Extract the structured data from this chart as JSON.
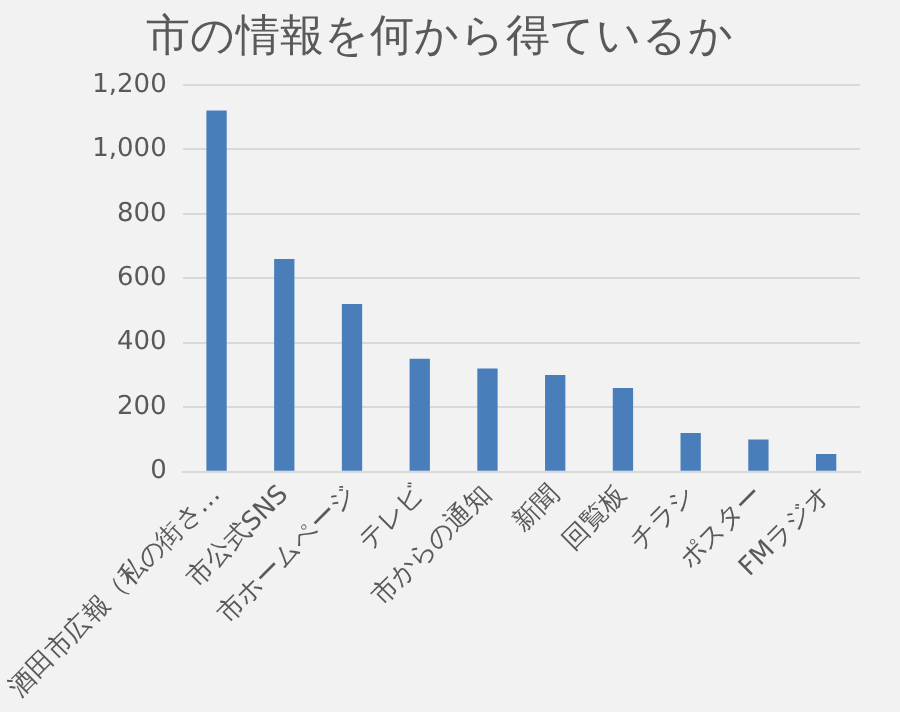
{
  "chart_data": {
    "type": "bar",
    "title": "市の情報を何から得ているか",
    "categories": [
      "酒田市広報（私の街さ…",
      "市公式SNS",
      "市ホームページ",
      "テレビ",
      "市からの通知",
      "新聞",
      "回覧板",
      "チラシ",
      "ポスター",
      "FMラジオ"
    ],
    "values": [
      1120,
      660,
      520,
      350,
      320,
      300,
      260,
      120,
      100,
      55
    ],
    "color": "#4a7ebb",
    "ylim": [
      0,
      1200
    ],
    "yticks": [
      0,
      200,
      400,
      600,
      800,
      {
        "value": 1000,
        "label": "1,000"
      },
      {
        "value": 1200,
        "label": "1,200"
      }
    ],
    "grid": "y",
    "legend": false
  }
}
